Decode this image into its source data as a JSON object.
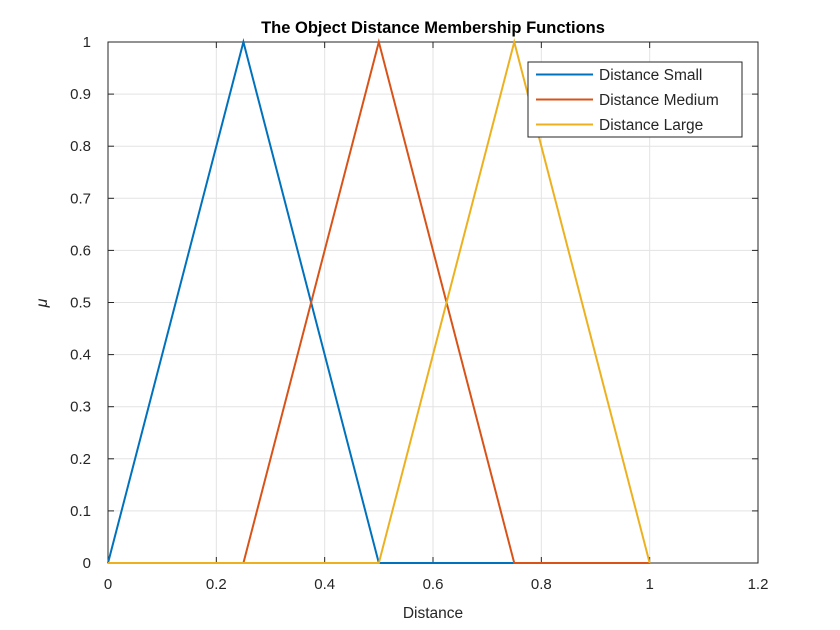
{
  "figure": {
    "background": "#FFFFFF"
  },
  "chart_data": {
    "type": "line",
    "title": "The Object Distance Membership Functions",
    "xlabel": "Distance",
    "ylabel": "μ",
    "xlim": [
      0,
      1.2
    ],
    "ylim": [
      0,
      1
    ],
    "xticks": [
      0,
      0.2,
      0.4,
      0.6,
      0.8,
      1,
      1.2
    ],
    "xtick_labels": [
      "0",
      "0.2",
      "0.4",
      "0.6",
      "0.8",
      "1",
      "1.2"
    ],
    "yticks": [
      0,
      0.1,
      0.2,
      0.3,
      0.4,
      0.5,
      0.6,
      0.7,
      0.8,
      0.9,
      1
    ],
    "ytick_labels": [
      "0",
      "0.1",
      "0.2",
      "0.3",
      "0.4",
      "0.5",
      "0.6",
      "0.7",
      "0.8",
      "0.9",
      "1"
    ],
    "grid": true,
    "legend_position": "top-right-inside",
    "series": [
      {
        "name": "Distance Small",
        "color": "#0072BD",
        "x": [
          0,
          0.25,
          0.5,
          1
        ],
        "y": [
          0,
          1,
          0,
          0
        ]
      },
      {
        "name": "Distance Medium",
        "color": "#D95319",
        "x": [
          0,
          0.25,
          0.5,
          0.75,
          1
        ],
        "y": [
          0,
          0,
          1,
          0,
          0
        ]
      },
      {
        "name": "Distance Large",
        "color": "#EDB120",
        "x": [
          0,
          0.5,
          0.75,
          1
        ],
        "y": [
          0,
          0,
          1,
          0
        ]
      }
    ]
  },
  "colors": {
    "axis": "#262626",
    "grid": "#E3E3E3",
    "background": "#FFFFFF",
    "legend_background": "#FFFFFF",
    "legend_border": "#262626",
    "title": "#000000"
  }
}
